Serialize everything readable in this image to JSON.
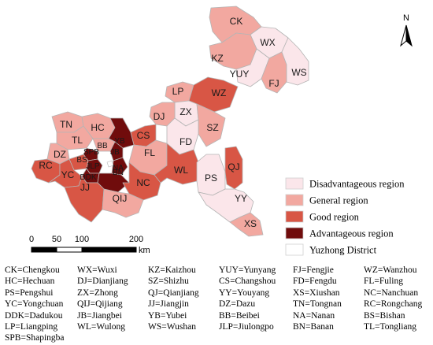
{
  "colors": {
    "disadvantageous": "#fbe6ea",
    "general": "#f2a8a0",
    "good": "#d85645",
    "advantageous": "#700c0c",
    "yuzhong": "#ffffff",
    "border": "#b5b5b5"
  },
  "north_label": "N",
  "legend": {
    "items": [
      {
        "category": "disadvantageous",
        "label": "Disadvantageous region"
      },
      {
        "category": "general",
        "label": "General region"
      },
      {
        "category": "good",
        "label": "Good region"
      },
      {
        "category": "advantageous",
        "label": "Advantageous region"
      },
      {
        "category": "yuzhong",
        "label": "Yuzhong District"
      }
    ]
  },
  "scale": {
    "ticks": [
      "0",
      "50",
      "100",
      "200"
    ],
    "unit": "km"
  },
  "map_labels": [
    {
      "code": "CK",
      "category": "general"
    },
    {
      "code": "WX",
      "category": "disadvantageous"
    },
    {
      "code": "KZ",
      "category": "general"
    },
    {
      "code": "YUY",
      "category": "disadvantageous"
    },
    {
      "code": "FJ",
      "category": "general"
    },
    {
      "code": "WS",
      "category": "disadvantageous"
    },
    {
      "code": "LP",
      "category": "general"
    },
    {
      "code": "WZ",
      "category": "good"
    },
    {
      "code": "ZX",
      "category": "disadvantageous"
    },
    {
      "code": "DJ",
      "category": "general"
    },
    {
      "code": "SZ",
      "category": "general"
    },
    {
      "code": "FD",
      "category": "disadvantageous"
    },
    {
      "code": "TN",
      "category": "general"
    },
    {
      "code": "HC",
      "category": "general"
    },
    {
      "code": "TL",
      "category": "general"
    },
    {
      "code": "CS",
      "category": "good"
    },
    {
      "code": "YB",
      "category": "advantageous"
    },
    {
      "code": "DZ",
      "category": "general"
    },
    {
      "code": "BB",
      "category": "general"
    },
    {
      "code": "SPB",
      "category": "advantageous"
    },
    {
      "code": "JB",
      "category": "advantageous"
    },
    {
      "code": "BS",
      "category": "good"
    },
    {
      "code": "JLP",
      "category": "advantageous"
    },
    {
      "code": "NA",
      "category": "advantageous"
    },
    {
      "code": "DDK",
      "category": "advantageous"
    },
    {
      "code": "BN",
      "category": "advantageous"
    },
    {
      "code": "RC",
      "category": "good"
    },
    {
      "code": "YC",
      "category": "good"
    },
    {
      "code": "FL",
      "category": "general"
    },
    {
      "code": "JJ",
      "category": "good"
    },
    {
      "code": "NC",
      "category": "good"
    },
    {
      "code": "WL",
      "category": "good"
    },
    {
      "code": "QIJ",
      "category": "general"
    },
    {
      "code": "PS",
      "category": "disadvantageous"
    },
    {
      "code": "QJ",
      "category": "good"
    },
    {
      "code": "YY",
      "category": "disadvantageous"
    },
    {
      "code": "XS",
      "category": "general"
    }
  ],
  "abbreviations": [
    "CK=Chengkou",
    "WX=Wuxi",
    "KZ=Kaizhou",
    "YUY=Yunyang",
    "FJ=Fengjie",
    "WZ=Wanzhou",
    "HC=Hechuan",
    "DJ=Dianjiang",
    "SZ=Shizhu",
    "CS=Changshou",
    "FD=Fengdu",
    "FL=Fuling",
    "PS=Pengshui",
    "ZX=Zhong",
    "QJ=Qianjiang",
    "YY=Youyang",
    "XS=Xiushan",
    "NC=Nanchuan",
    "YC=Yongchuan",
    "QIJ=Qijiang",
    "JJ=Jiangjin",
    "DZ=Dazu",
    "TN=Tongnan",
    "RC=Rongchang",
    "DDK=Dadukou",
    "JB=Jiangbei",
    "YB=Yubei",
    "BB=Beibei",
    "NA=Nanan",
    "BS=Bishan",
    "LP=Liangping",
    "WL=Wulong",
    "WS=Wushan",
    "JLP=Jiulongpo",
    "BN=Banan",
    "TL=Tongliang",
    "SPB=Shapingba"
  ]
}
